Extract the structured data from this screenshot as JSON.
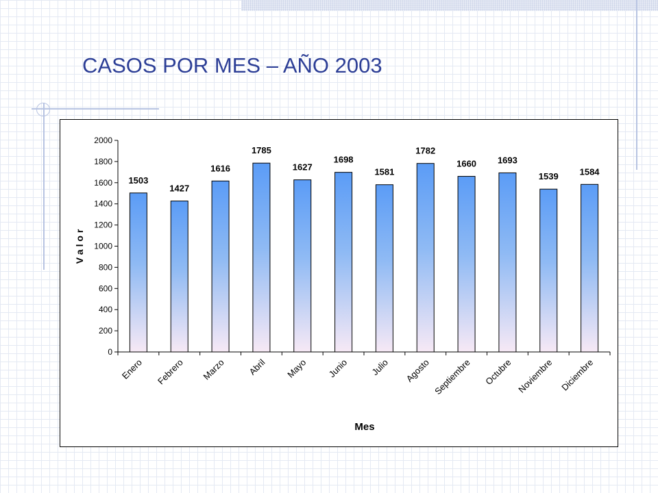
{
  "chart_data": {
    "type": "bar",
    "title": "CASOS POR MES – AÑO 2003",
    "xlabel": "Mes",
    "ylabel": "V a l o r",
    "ylim": [
      0,
      2000
    ],
    "yticks": [
      0,
      200,
      400,
      600,
      800,
      1000,
      1200,
      1400,
      1600,
      1800,
      2000
    ],
    "categories": [
      "Enero",
      "Febrero",
      "Marzo",
      "Abril",
      "Mayo",
      "Junio",
      "Julio",
      "Agosto",
      "Septiembre",
      "Octubre",
      "Noviembre",
      "Diciembre"
    ],
    "values": [
      1503,
      1427,
      1616,
      1785,
      1627,
      1698,
      1581,
      1782,
      1660,
      1693,
      1539,
      1584
    ],
    "grid": false,
    "legend": "none",
    "colors": {
      "bar_top": "#5b9cf6",
      "bar_bottom": "#f7e9f5",
      "title": "#2c3e96"
    }
  }
}
